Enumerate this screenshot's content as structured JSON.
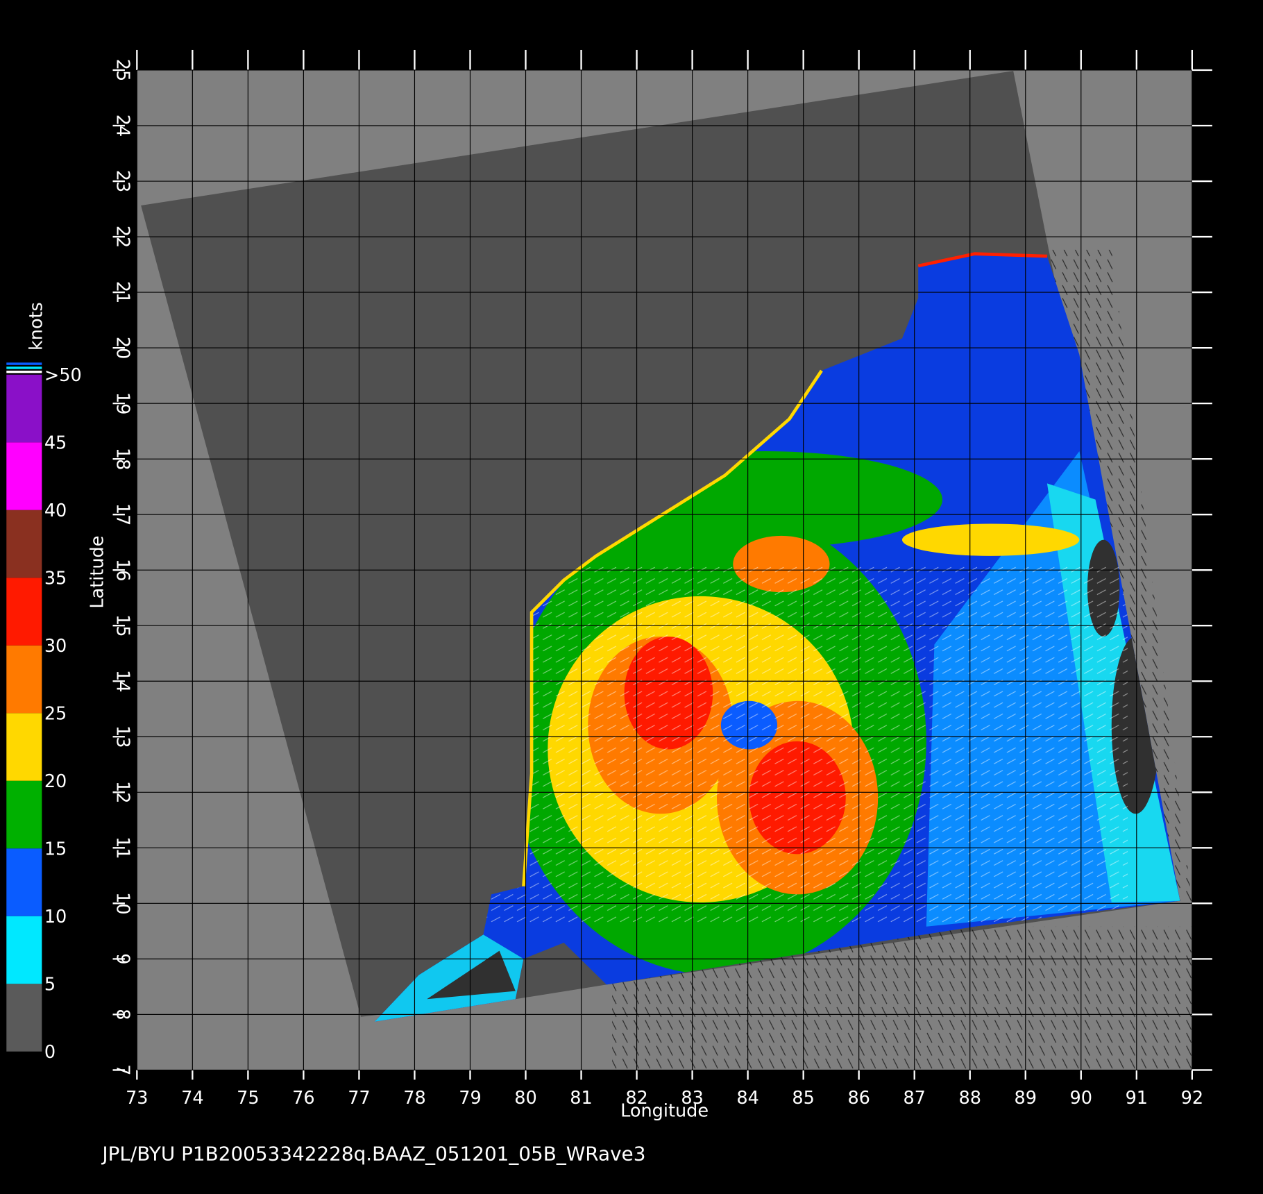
{
  "map": {
    "xlabel": "Longitude",
    "ylabel": "Latitude",
    "xlim": [
      73,
      92
    ],
    "ylim": [
      7,
      25
    ],
    "xticks": [
      73,
      74,
      75,
      76,
      77,
      78,
      79,
      80,
      81,
      82,
      83,
      84,
      85,
      86,
      87,
      88,
      89,
      90,
      91,
      92
    ],
    "yticks": [
      7,
      8,
      9,
      10,
      11,
      12,
      13,
      14,
      15,
      16,
      17,
      18,
      19,
      20,
      21,
      22,
      23,
      24,
      25
    ],
    "colorbar": {
      "label": "knots",
      "lim": [
        0,
        50
      ],
      "ticks": [
        0,
        5,
        10,
        15,
        20,
        25,
        30,
        35,
        40,
        45,
        {
          "value": 50,
          "label": ">50"
        }
      ],
      "colors": [
        "#5a5a5a",
        "#00e8ff",
        "#0a5cff",
        "#00b000",
        "#ffd800",
        "#ff7a00",
        "#ff1a00",
        "#8a3020",
        "#ff00ff",
        "#8a10c8"
      ]
    },
    "footer": "JPL/BYU  P1B20053342228q.BAAZ_051201_05B_WRave3"
  }
}
